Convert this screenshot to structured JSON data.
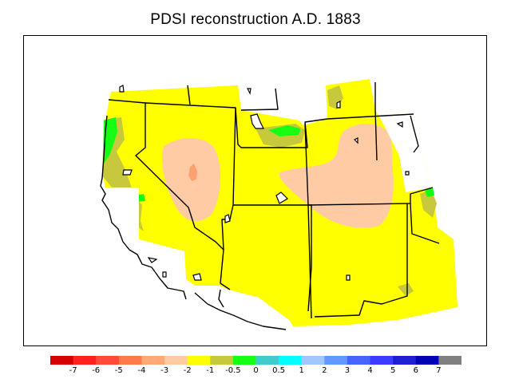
{
  "title": "PDSI reconstruction A.D. 1883",
  "legend": {
    "colors": [
      "#d40000",
      "#ff2020",
      "#ff4a3a",
      "#ff7a4a",
      "#ffa878",
      "#ffcba4",
      "#ffff00",
      "#c8c83c",
      "#14ff14",
      "#40cccc",
      "#00ffff",
      "#a0c8ff",
      "#6498ff",
      "#4664ff",
      "#3c3cff",
      "#1e1ed2",
      "#0000b4",
      "#808080"
    ],
    "ticks": [
      "-7",
      "-6",
      "-5",
      "-4",
      "-3",
      "-2",
      "-1",
      "-0.5",
      "0",
      "0.5",
      "1",
      "2",
      "3",
      "4",
      "5",
      "6",
      "7"
    ]
  },
  "fill_colors": {
    "yellow": "#ffff00",
    "peach": "#ffcba4",
    "salmon": "#ffa070",
    "olive": "#c8c83c",
    "green": "#14ff14",
    "white": "#ffffff"
  }
}
